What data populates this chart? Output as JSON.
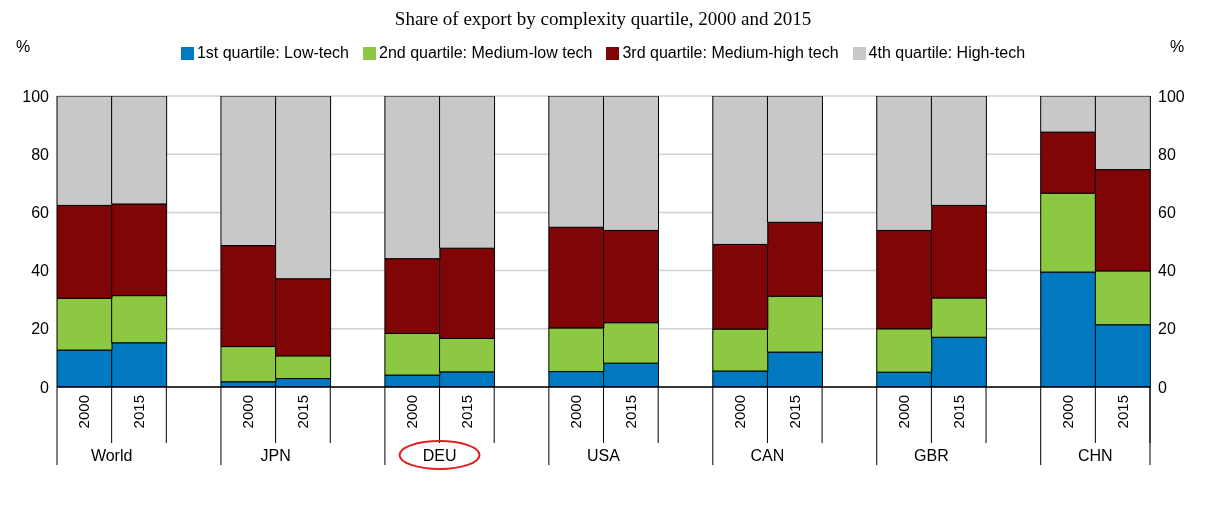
{
  "chart_data": {
    "type": "bar",
    "title": "Share of export by complexity quartile, 2000 and 2015",
    "categories": [
      "2000",
      "2015",
      null,
      "2000",
      "2015",
      null,
      "2000",
      "2015",
      null,
      "2000",
      "2015",
      null,
      "2000",
      "2015",
      null,
      "2000",
      "2015",
      null,
      "2000",
      "2015"
    ],
    "series": [
      {
        "name": "1st quartile: Low-tech",
        "color": "#0079c1",
        "values": [
          12.7,
          15.2,
          null,
          1.8,
          2.9,
          null,
          4.1,
          5.2,
          null,
          5.3,
          8.2,
          null,
          5.5,
          12.0,
          null,
          5.1,
          17.1,
          null,
          39.5,
          21.4
        ]
      },
      {
        "name": "2nd quartile: Medium-low tech",
        "color": "#8cc841",
        "values": [
          17.8,
          16.2,
          null,
          12.1,
          7.8,
          null,
          14.3,
          11.5,
          null,
          15.0,
          13.9,
          null,
          14.4,
          19.2,
          null,
          14.9,
          13.5,
          null,
          27.1,
          18.5
        ]
      },
      {
        "name": "3rd quartile: Medium-high tech",
        "color": "#7f0506",
        "values": [
          31.9,
          31.5,
          null,
          34.7,
          26.5,
          null,
          25.7,
          31.0,
          null,
          34.6,
          31.7,
          null,
          29.1,
          25.4,
          null,
          33.8,
          31.8,
          null,
          21.0,
          34.8
        ]
      },
      {
        "name": "4th quartile: High-tech",
        "color": "#c8c8c8",
        "values": [
          37.6,
          37.1,
          null,
          51.4,
          62.8,
          null,
          55.9,
          52.3,
          null,
          45.1,
          46.2,
          null,
          51.0,
          43.4,
          null,
          46.2,
          37.6,
          null,
          12.4,
          25.3
        ]
      }
    ],
    "stacked": true,
    "annotations": [
      "World",
      "JPN",
      "DEU",
      "USA",
      "CAN",
      "GBR",
      "CHN"
    ],
    "ylabel": "%",
    "y2label": "%",
    "ylim": [
      0,
      100
    ],
    "yticks": [
      0,
      20,
      40,
      60,
      80,
      100
    ],
    "y2lim": [
      0,
      100
    ],
    "y2ticks": [
      0,
      20,
      40,
      60,
      80,
      100
    ],
    "grid": "y",
    "legend": "top"
  }
}
